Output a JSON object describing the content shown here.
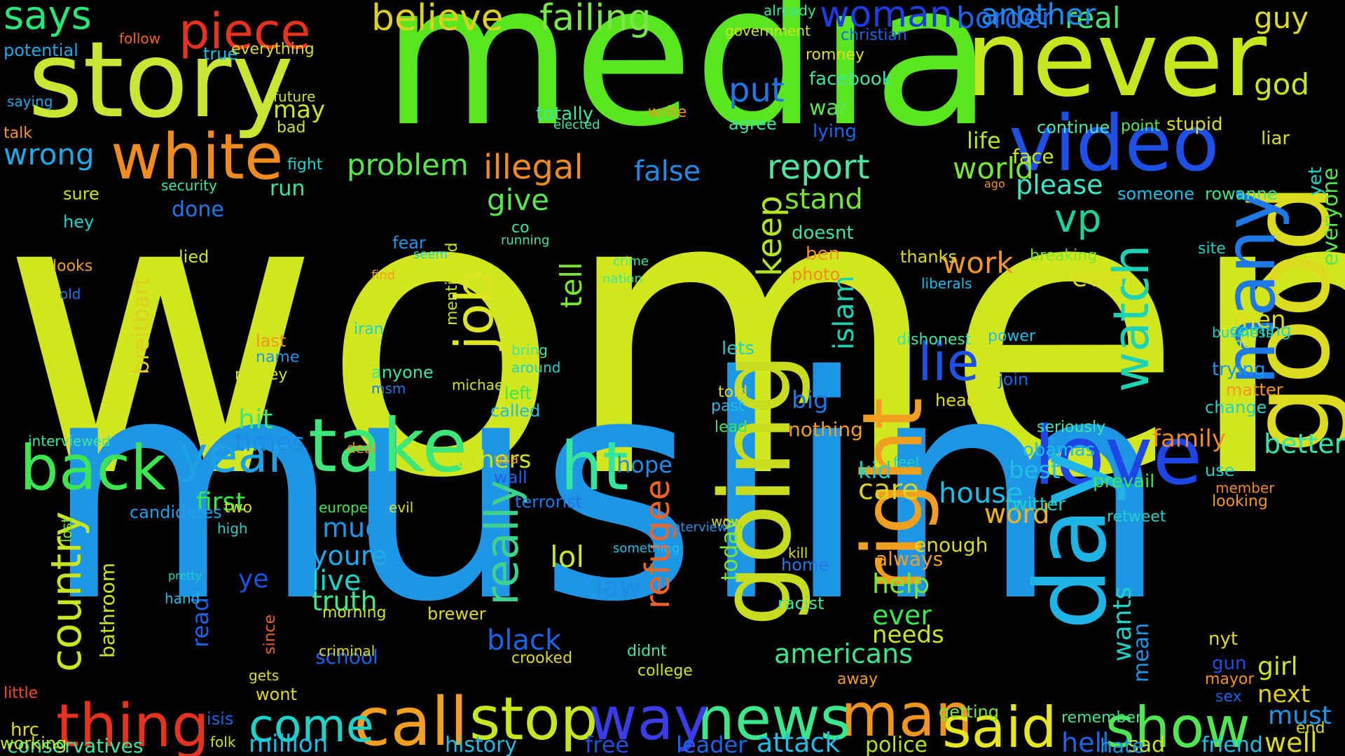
{
  "background": "#000000",
  "words": [
    {
      "text": "women",
      "color": "#d2e61e"
    },
    {
      "text": "muslim",
      "color": "#1e96e6"
    },
    {
      "text": "media",
      "color": "#5ae61e"
    },
    {
      "text": "never",
      "color": "#c8e61e"
    },
    {
      "text": "story",
      "color": "#c8e632"
    },
    {
      "text": "video",
      "color": "#1e50e6"
    },
    {
      "text": "take",
      "color": "#3ce678"
    },
    {
      "text": "love",
      "color": "#1e46e6"
    },
    {
      "text": "good",
      "color": "#dcdc1e"
    },
    {
      "text": "back",
      "color": "#3ce650"
    },
    {
      "text": "ht",
      "color": "#32e6a0"
    },
    {
      "text": "day",
      "color": "#1eb4e6"
    },
    {
      "text": "white",
      "color": "#f08c1e"
    },
    {
      "text": "right",
      "color": "#f0a01e"
    },
    {
      "text": "call",
      "color": "#f0a01e"
    },
    {
      "text": "stop",
      "color": "#c8e61e"
    },
    {
      "text": "going",
      "color": "#c8dc1e"
    },
    {
      "text": "man",
      "color": "#f0961e"
    },
    {
      "text": "said",
      "color": "#e6e61e"
    },
    {
      "text": "show",
      "color": "#50e650"
    },
    {
      "text": "thing",
      "color": "#e6321e"
    },
    {
      "text": "news",
      "color": "#3ce68c"
    },
    {
      "text": "way",
      "color": "#3c3ce6"
    },
    {
      "text": "come",
      "color": "#1ed2c8"
    },
    {
      "text": "year",
      "color": "#1ea0e6"
    },
    {
      "text": "many",
      "color": "#1e78e6"
    },
    {
      "text": "watch",
      "color": "#1ed2b4"
    },
    {
      "text": "lie",
      "color": "#1e50e6"
    },
    {
      "text": "job",
      "color": "#dce61e"
    },
    {
      "text": "piece",
      "color": "#e6321e"
    },
    {
      "text": "says",
      "color": "#28e678"
    },
    {
      "text": "believe",
      "color": "#dcd21e"
    },
    {
      "text": "failing",
      "color": "#78e646"
    },
    {
      "text": "woman",
      "color": "#1e3ce6"
    },
    {
      "text": "border",
      "color": "#1e64e6"
    },
    {
      "text": "real",
      "color": "#3ce678"
    },
    {
      "text": "another",
      "color": "#1e8ce6"
    },
    {
      "text": "guy",
      "color": "#dcdc1e"
    },
    {
      "text": "god",
      "color": "#c8e61e"
    },
    {
      "text": "country",
      "color": "#c8e61e"
    },
    {
      "text": "really",
      "color": "#3cd28c"
    },
    {
      "text": "report",
      "color": "#50e6a0"
    },
    {
      "text": "illegal",
      "color": "#f08c1e"
    },
    {
      "text": "problem",
      "color": "#5ae650"
    },
    {
      "text": "wrong",
      "color": "#1eaae6"
    },
    {
      "text": "vp",
      "color": "#1ed2a0"
    },
    {
      "text": "world",
      "color": "#78e632"
    },
    {
      "text": "please",
      "color": "#3ce6c8"
    },
    {
      "text": "better",
      "color": "#32e6b4"
    },
    {
      "text": "refugee",
      "color": "#f06428"
    },
    {
      "text": "keep",
      "color": "#b4e61e"
    },
    {
      "text": "tell",
      "color": "#78e632"
    },
    {
      "text": "work",
      "color": "#f09628"
    },
    {
      "text": "give",
      "color": "#5ae650"
    },
    {
      "text": "put",
      "color": "#1e78e6"
    },
    {
      "text": "islam",
      "color": "#1ed2b4"
    },
    {
      "text": "stand",
      "color": "#78e632"
    },
    {
      "text": "false",
      "color": "#1e8ce6"
    },
    {
      "text": "live",
      "color": "#1ed2c8"
    },
    {
      "text": "truth",
      "color": "#3ce68c"
    },
    {
      "text": "much",
      "color": "#1e96e6"
    },
    {
      "text": "youre",
      "color": "#1eaae6"
    },
    {
      "text": "lol",
      "color": "#c8e61e"
    },
    {
      "text": "law",
      "color": "#1e8ce6"
    },
    {
      "text": "black",
      "color": "#1e64e6"
    },
    {
      "text": "house",
      "color": "#1ebee6"
    },
    {
      "text": "word",
      "color": "#f0b41e"
    },
    {
      "text": "care",
      "color": "#dcd21e"
    },
    {
      "text": "help",
      "color": "#78e632"
    },
    {
      "text": "ever",
      "color": "#3ce650"
    },
    {
      "text": "needs",
      "color": "#c8e61e"
    },
    {
      "text": "americans",
      "color": "#3ce68c"
    },
    {
      "text": "hell",
      "color": "#1e64e6"
    },
    {
      "text": "well",
      "color": "#dcdc1e"
    },
    {
      "text": "must",
      "color": "#1e96e6"
    },
    {
      "text": "girl",
      "color": "#c8e61e"
    },
    {
      "text": "next",
      "color": "#dcd21e"
    },
    {
      "text": "even",
      "color": "#dcdc1e"
    },
    {
      "text": "men",
      "color": "#dcdc1e"
    },
    {
      "text": "family",
      "color": "#f08c1e"
    },
    {
      "text": "best",
      "color": "#1ebee6"
    },
    {
      "text": "first",
      "color": "#3ce650"
    },
    {
      "text": "times",
      "color": "#1e8ce6"
    },
    {
      "text": "hit",
      "color": "#3ce678"
    },
    {
      "text": "others",
      "color": "#c8e61e"
    },
    {
      "text": "attack",
      "color": "#1ebee6"
    },
    {
      "text": "million",
      "color": "#1ebee6"
    },
    {
      "text": "leader",
      "color": "#1e64e6"
    },
    {
      "text": "free",
      "color": "#1e50e6"
    },
    {
      "text": "history",
      "color": "#1ebee6"
    },
    {
      "text": "police",
      "color": "#b4e61e"
    },
    {
      "text": "friend",
      "color": "#1ebee6"
    },
    {
      "text": "sad",
      "color": "#c8e61e"
    },
    {
      "text": "hate",
      "color": "#1e96e6"
    },
    {
      "text": "bathroom",
      "color": "#c8e61e"
    },
    {
      "text": "read",
      "color": "#1e64e6"
    },
    {
      "text": "breitbart",
      "color": "#dcd21e"
    },
    {
      "text": "today",
      "color": "#78e632"
    },
    {
      "text": "always",
      "color": "#f0a01e"
    },
    {
      "text": "enough",
      "color": "#dcdc1e"
    },
    {
      "text": "twitter",
      "color": "#1ed2c8"
    },
    {
      "text": "kid",
      "color": "#1ed2c8"
    },
    {
      "text": "big",
      "color": "#1e78e6"
    },
    {
      "text": "nothing",
      "color": "#f0a01e"
    },
    {
      "text": "hope",
      "color": "#1e8ce6"
    },
    {
      "text": "school",
      "color": "#1e64e6"
    },
    {
      "text": "wants",
      "color": "#1ed2c8"
    },
    {
      "text": "mean",
      "color": "#1e96e6"
    },
    {
      "text": "ye",
      "color": "#1e50e6"
    },
    {
      "text": "candidates",
      "color": "#1ea0e6"
    },
    {
      "text": "conservatives",
      "color": "#3ce6a0"
    },
    {
      "text": "hrc",
      "color": "#dcdc1e"
    },
    {
      "text": "working",
      "color": "#c8e61e"
    },
    {
      "text": "everyone",
      "color": "#5ae650"
    },
    {
      "text": "yet",
      "color": "#1ed2c8"
    },
    {
      "text": "liar",
      "color": "#dcdc1e"
    },
    {
      "text": "stupid",
      "color": "#dcdc1e"
    },
    {
      "text": "continue",
      "color": "#50e6a0"
    },
    {
      "text": "point",
      "color": "#5ae650"
    },
    {
      "text": "life",
      "color": "#b4e61e"
    },
    {
      "text": "face",
      "color": "#c8e61e"
    },
    {
      "text": "someone",
      "color": "#1ebee6"
    },
    {
      "text": "rowanne",
      "color": "#3ce68c"
    },
    {
      "text": "site",
      "color": "#1ed2c8"
    },
    {
      "text": "breaking",
      "color": "#78e632"
    },
    {
      "text": "coming",
      "color": "#1ed2c8"
    },
    {
      "text": "trying",
      "color": "#1e96e6"
    },
    {
      "text": "matter",
      "color": "#f0961e"
    },
    {
      "text": "change",
      "color": "#1ed2c8"
    },
    {
      "text": "business",
      "color": "#1ed2c8"
    },
    {
      "text": "line",
      "color": "#c8e61e"
    },
    {
      "text": "seriously",
      "color": "#3ce6a0"
    },
    {
      "text": "obamas",
      "color": "#1ebee6"
    },
    {
      "text": "use",
      "color": "#1ed2c8"
    },
    {
      "text": "prevail",
      "color": "#3ce650"
    },
    {
      "text": "looking",
      "color": "#f0961e"
    },
    {
      "text": "member",
      "color": "#f08c1e"
    },
    {
      "text": "retweet",
      "color": "#1ed2c8"
    },
    {
      "text": "nyt",
      "color": "#dcdc1e"
    },
    {
      "text": "gun",
      "color": "#1e50e6"
    },
    {
      "text": "mayor",
      "color": "#f0961e"
    },
    {
      "text": "sex",
      "color": "#1e64e6"
    },
    {
      "text": "end",
      "color": "#dcdc1e"
    },
    {
      "text": "remember",
      "color": "#3ce68c"
    },
    {
      "text": "getting",
      "color": "#78e632"
    },
    {
      "text": "ago",
      "color": "#f0961e"
    },
    {
      "text": "dishonest",
      "color": "#3ce6a0"
    },
    {
      "text": "power",
      "color": "#1ebee6"
    },
    {
      "text": "head",
      "color": "#dcdc1e"
    },
    {
      "text": "join",
      "color": "#1e64e6"
    },
    {
      "text": "thanks",
      "color": "#dcdc1e"
    },
    {
      "text": "liberals",
      "color": "#1ebee6"
    },
    {
      "text": "lets",
      "color": "#1ed2c8"
    },
    {
      "text": "told",
      "color": "#dcdc1e"
    },
    {
      "text": "past",
      "color": "#1ebee6"
    },
    {
      "text": "lead",
      "color": "#3ce650"
    },
    {
      "text": "doesnt",
      "color": "#3ce6a0"
    },
    {
      "text": "ben",
      "color": "#f0961e"
    },
    {
      "text": "photo",
      "color": "#f08c1e"
    },
    {
      "text": "war",
      "color": "#5ae650"
    },
    {
      "text": "lying",
      "color": "#1e64e6"
    },
    {
      "text": "agree",
      "color": "#3ce6a0"
    },
    {
      "text": "facebook",
      "color": "#3ce6a0"
    },
    {
      "text": "romney",
      "color": "#dcdc1e"
    },
    {
      "text": "christian",
      "color": "#1e64e6"
    },
    {
      "text": "government",
      "color": "#c8e61e"
    },
    {
      "text": "already",
      "color": "#3ce6a0"
    },
    {
      "text": "totally",
      "color": "#3ce6a0"
    },
    {
      "text": "write",
      "color": "#f0961e"
    },
    {
      "text": "elected",
      "color": "#3ce6a0"
    },
    {
      "text": "may",
      "color": "#c8e61e"
    },
    {
      "text": "bad",
      "color": "#c8e61e"
    },
    {
      "text": "future",
      "color": "#c8e61e"
    },
    {
      "text": "run",
      "color": "#3ce6a0"
    },
    {
      "text": "fight",
      "color": "#1ed2c8"
    },
    {
      "text": "security",
      "color": "#3ce6a0"
    },
    {
      "text": "done",
      "color": "#1e78e6"
    },
    {
      "text": "lied",
      "color": "#c8e61e"
    },
    {
      "text": "hey",
      "color": "#1ed2c8"
    },
    {
      "text": "sure",
      "color": "#c8e61e"
    },
    {
      "text": "looks",
      "color": "#f0a01e"
    },
    {
      "text": "old",
      "color": "#1e78e6"
    },
    {
      "text": "talk",
      "color": "#f0961e"
    },
    {
      "text": "potential",
      "color": "#1eaae6"
    },
    {
      "text": "saying",
      "color": "#1eaae6"
    },
    {
      "text": "follow",
      "color": "#f06428"
    },
    {
      "text": "true",
      "color": "#1ebee6"
    },
    {
      "text": "everything",
      "color": "#dcdc1e"
    },
    {
      "text": "interviewed",
      "color": "#3ce6a0"
    },
    {
      "text": "two",
      "color": "#dcdc1e"
    },
    {
      "text": "high",
      "color": "#1ed2c8"
    },
    {
      "text": "lost",
      "color": "#78e632"
    },
    {
      "text": "hand",
      "color": "#1ebee6"
    },
    {
      "text": "pretty",
      "color": "#1ed2c8"
    },
    {
      "text": "since",
      "color": "#f0641e"
    },
    {
      "text": "morning",
      "color": "#c8e61e"
    },
    {
      "text": "brewer",
      "color": "#dcdc1e"
    },
    {
      "text": "criminal",
      "color": "#dcdc1e"
    },
    {
      "text": "crooked",
      "color": "#dcdc1e"
    },
    {
      "text": "college",
      "color": "#c8e61e"
    },
    {
      "text": "didnt",
      "color": "#3ce6a0"
    },
    {
      "text": "racist",
      "color": "#3ce6a0"
    },
    {
      "text": "home",
      "color": "#1e78e6"
    },
    {
      "text": "away",
      "color": "#f0a01e"
    },
    {
      "text": "wont",
      "color": "#dcdc1e"
    },
    {
      "text": "gets",
      "color": "#dcdc1e"
    },
    {
      "text": "isis",
      "color": "#1e64e6"
    },
    {
      "text": "folk",
      "color": "#c8e61e"
    },
    {
      "text": "little",
      "color": "#f0501e"
    },
    {
      "text": "name",
      "color": "#1e96e6"
    },
    {
      "text": "money",
      "color": "#c8e61e"
    },
    {
      "text": "last",
      "color": "#f0961e"
    },
    {
      "text": "iran",
      "color": "#1ed2c8"
    },
    {
      "text": "anyone",
      "color": "#3ce6a0"
    },
    {
      "text": "msm",
      "color": "#1e78e6"
    },
    {
      "text": "left",
      "color": "#3ce650"
    },
    {
      "text": "called",
      "color": "#1ebee6"
    },
    {
      "text": "usa",
      "color": "#f0961e"
    },
    {
      "text": "wall",
      "color": "#1e64e6"
    },
    {
      "text": "terrorist",
      "color": "#1e78e6"
    },
    {
      "text": "deal",
      "color": "#f0961e"
    },
    {
      "text": "evil",
      "color": "#dcdc1e"
    },
    {
      "text": "europe",
      "color": "#3ce650"
    },
    {
      "text": "fear",
      "color": "#1e96e6"
    },
    {
      "text": "seem",
      "color": "#1ed2c8"
    },
    {
      "text": "running",
      "color": "#3ce6a0"
    },
    {
      "text": "co",
      "color": "#3ce6a0"
    },
    {
      "text": "find",
      "color": "#f0a01e"
    },
    {
      "text": "mentioned",
      "color": "#c8e61e"
    },
    {
      "text": "michael",
      "color": "#c8e61e"
    },
    {
      "text": "around",
      "color": "#1ed2c8"
    },
    {
      "text": "bring",
      "color": "#3ce6a0"
    },
    {
      "text": "kill",
      "color": "#dcdc1e"
    },
    {
      "text": "feel",
      "color": "#1ed2c8"
    },
    {
      "text": "wow",
      "color": "#dcdc1e"
    },
    {
      "text": "interview",
      "color": "#1e96e6"
    },
    {
      "text": "something",
      "color": "#1ebee6"
    },
    {
      "text": "crime",
      "color": "#3ce6a0"
    },
    {
      "text": "nation",
      "color": "#3ce6a0"
    },
    {
      "text": "world"
    }
  ]
}
